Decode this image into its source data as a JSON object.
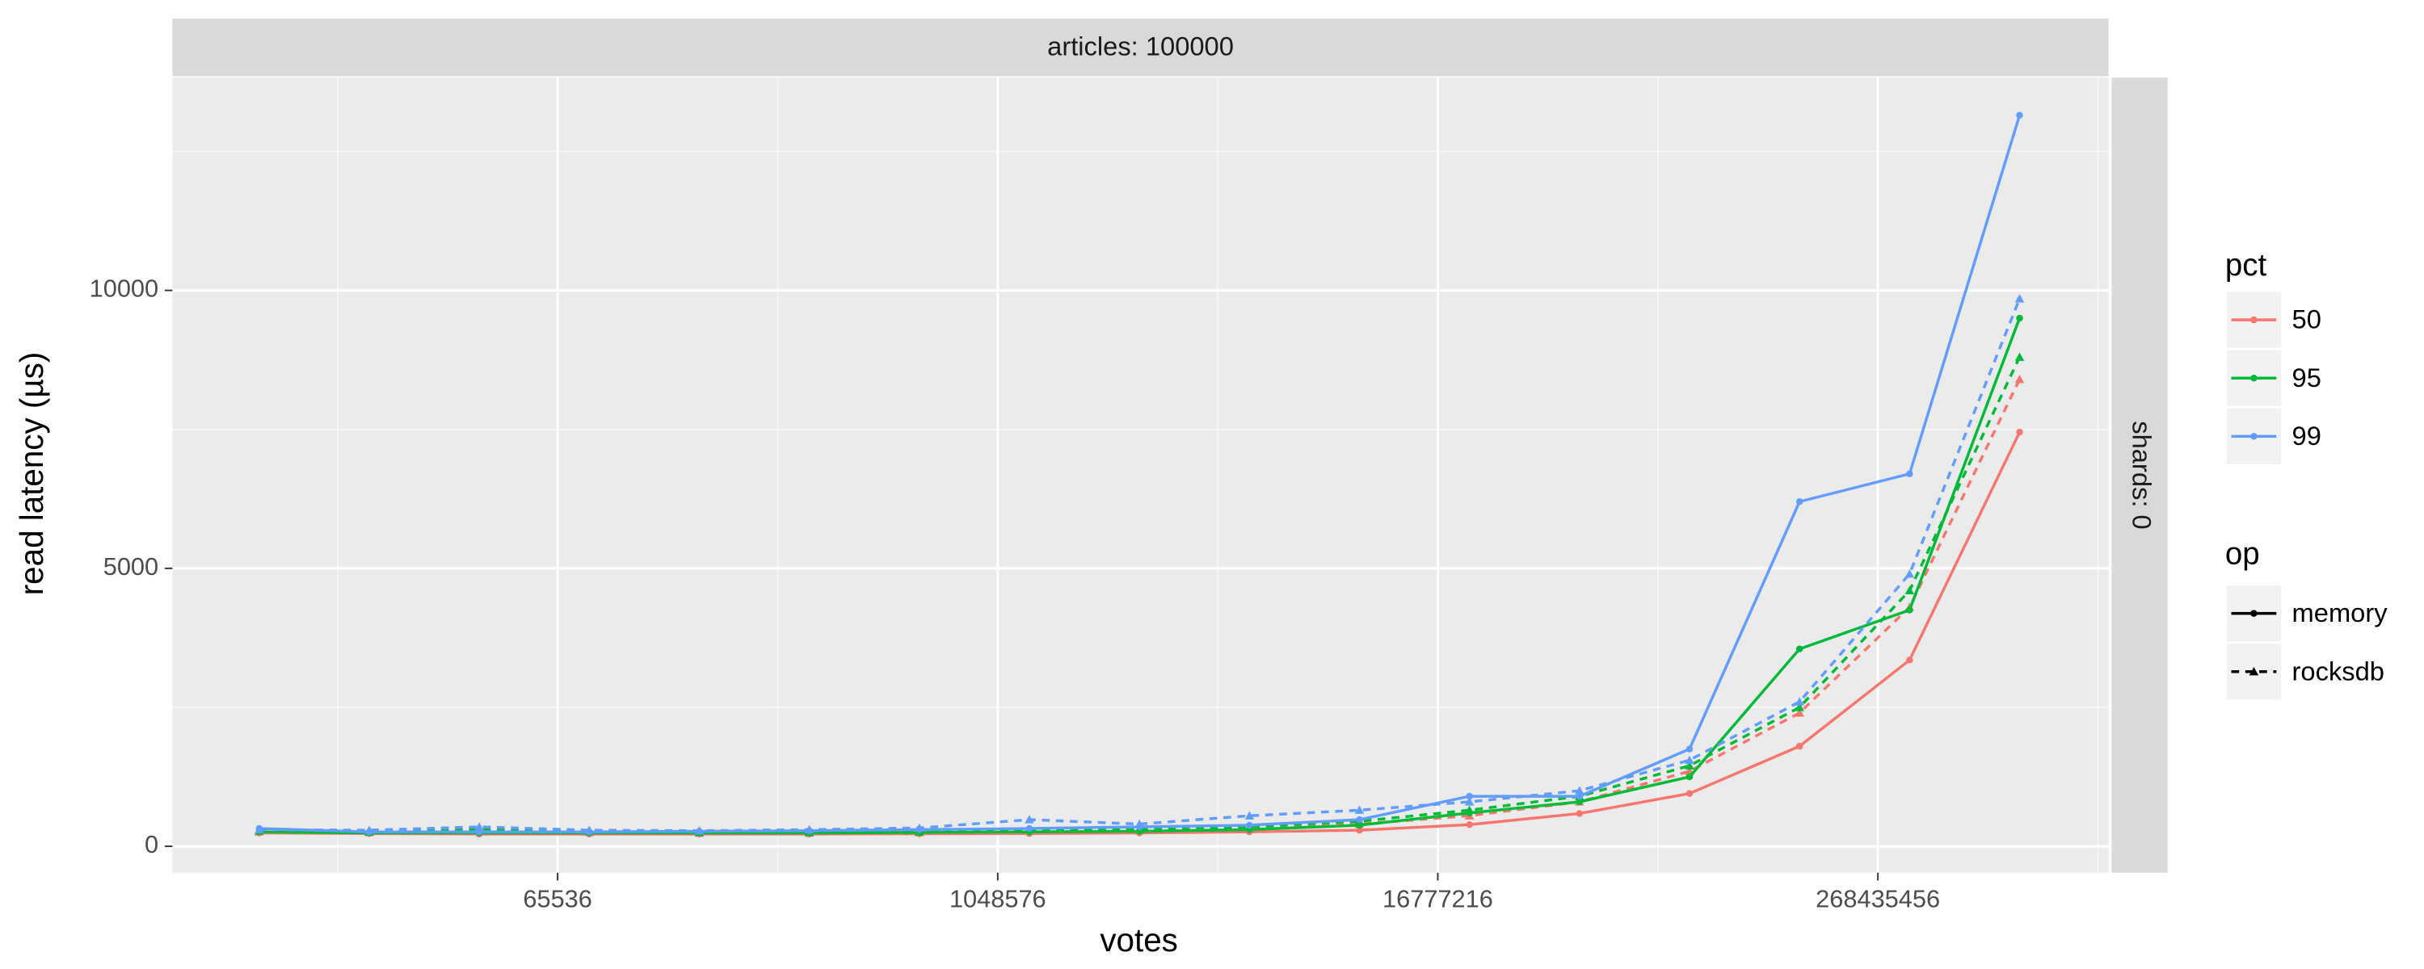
{
  "chart_data": {
    "type": "line",
    "facet_top": "articles: 100000",
    "facet_right": "shards: 0",
    "x_label": "votes",
    "y_label": "read latency (µs)",
    "x_log_base": 2,
    "x": [
      10000,
      20000,
      40000,
      80000,
      160000,
      320000,
      640000,
      1280000,
      2560000,
      5120000,
      10240000,
      20480000,
      40960000,
      81920000,
      163840000,
      327680000,
      655360000
    ],
    "xlim": [
      5790,
      1148000000
    ],
    "xticks": [
      65536,
      1048576,
      16777216,
      268435456
    ],
    "ylim": [
      -475,
      13827
    ],
    "yticks": [
      0,
      5000,
      10000
    ],
    "grid": true,
    "legend_position": "right",
    "color_legend": {
      "title": "pct",
      "items": [
        {
          "name": "50",
          "color": "#F8766D"
        },
        {
          "name": "95",
          "color": "#00BA38"
        },
        {
          "name": "99",
          "color": "#619CFF"
        }
      ]
    },
    "linetype_legend": {
      "title": "op",
      "items": [
        {
          "name": "memory",
          "dash": "solid",
          "shape": "circle"
        },
        {
          "name": "rocksdb",
          "dash": "dashed",
          "shape": "triangle"
        }
      ]
    },
    "series": [
      {
        "pct": "50",
        "op": "memory",
        "values": [
          240,
          230,
          220,
          220,
          220,
          220,
          225,
          230,
          240,
          260,
          290,
          390,
          590,
          950,
          1800,
          3350,
          7450
        ]
      },
      {
        "pct": "50",
        "op": "rocksdb",
        "values": [
          260,
          250,
          270,
          250,
          240,
          240,
          250,
          270,
          280,
          300,
          400,
          550,
          800,
          1350,
          2400,
          4300,
          8400
        ]
      },
      {
        "pct": "95",
        "op": "memory",
        "values": [
          260,
          240,
          240,
          240,
          240,
          240,
          250,
          260,
          270,
          300,
          380,
          600,
          800,
          1250,
          3550,
          4250,
          9500
        ]
      },
      {
        "pct": "95",
        "op": "rocksdb",
        "values": [
          280,
          260,
          300,
          270,
          250,
          250,
          260,
          300,
          300,
          350,
          450,
          650,
          900,
          1450,
          2500,
          4600,
          8800
        ]
      },
      {
        "pct": "99",
        "op": "memory",
        "values": [
          320,
          260,
          260,
          260,
          270,
          280,
          300,
          320,
          350,
          380,
          480,
          900,
          900,
          1750,
          6200,
          6700,
          13150
        ]
      },
      {
        "pct": "99",
        "op": "rocksdb",
        "values": [
          300,
          290,
          350,
          290,
          280,
          300,
          330,
          480,
          400,
          550,
          650,
          800,
          1000,
          1550,
          2600,
          4900,
          9850
        ]
      }
    ]
  }
}
